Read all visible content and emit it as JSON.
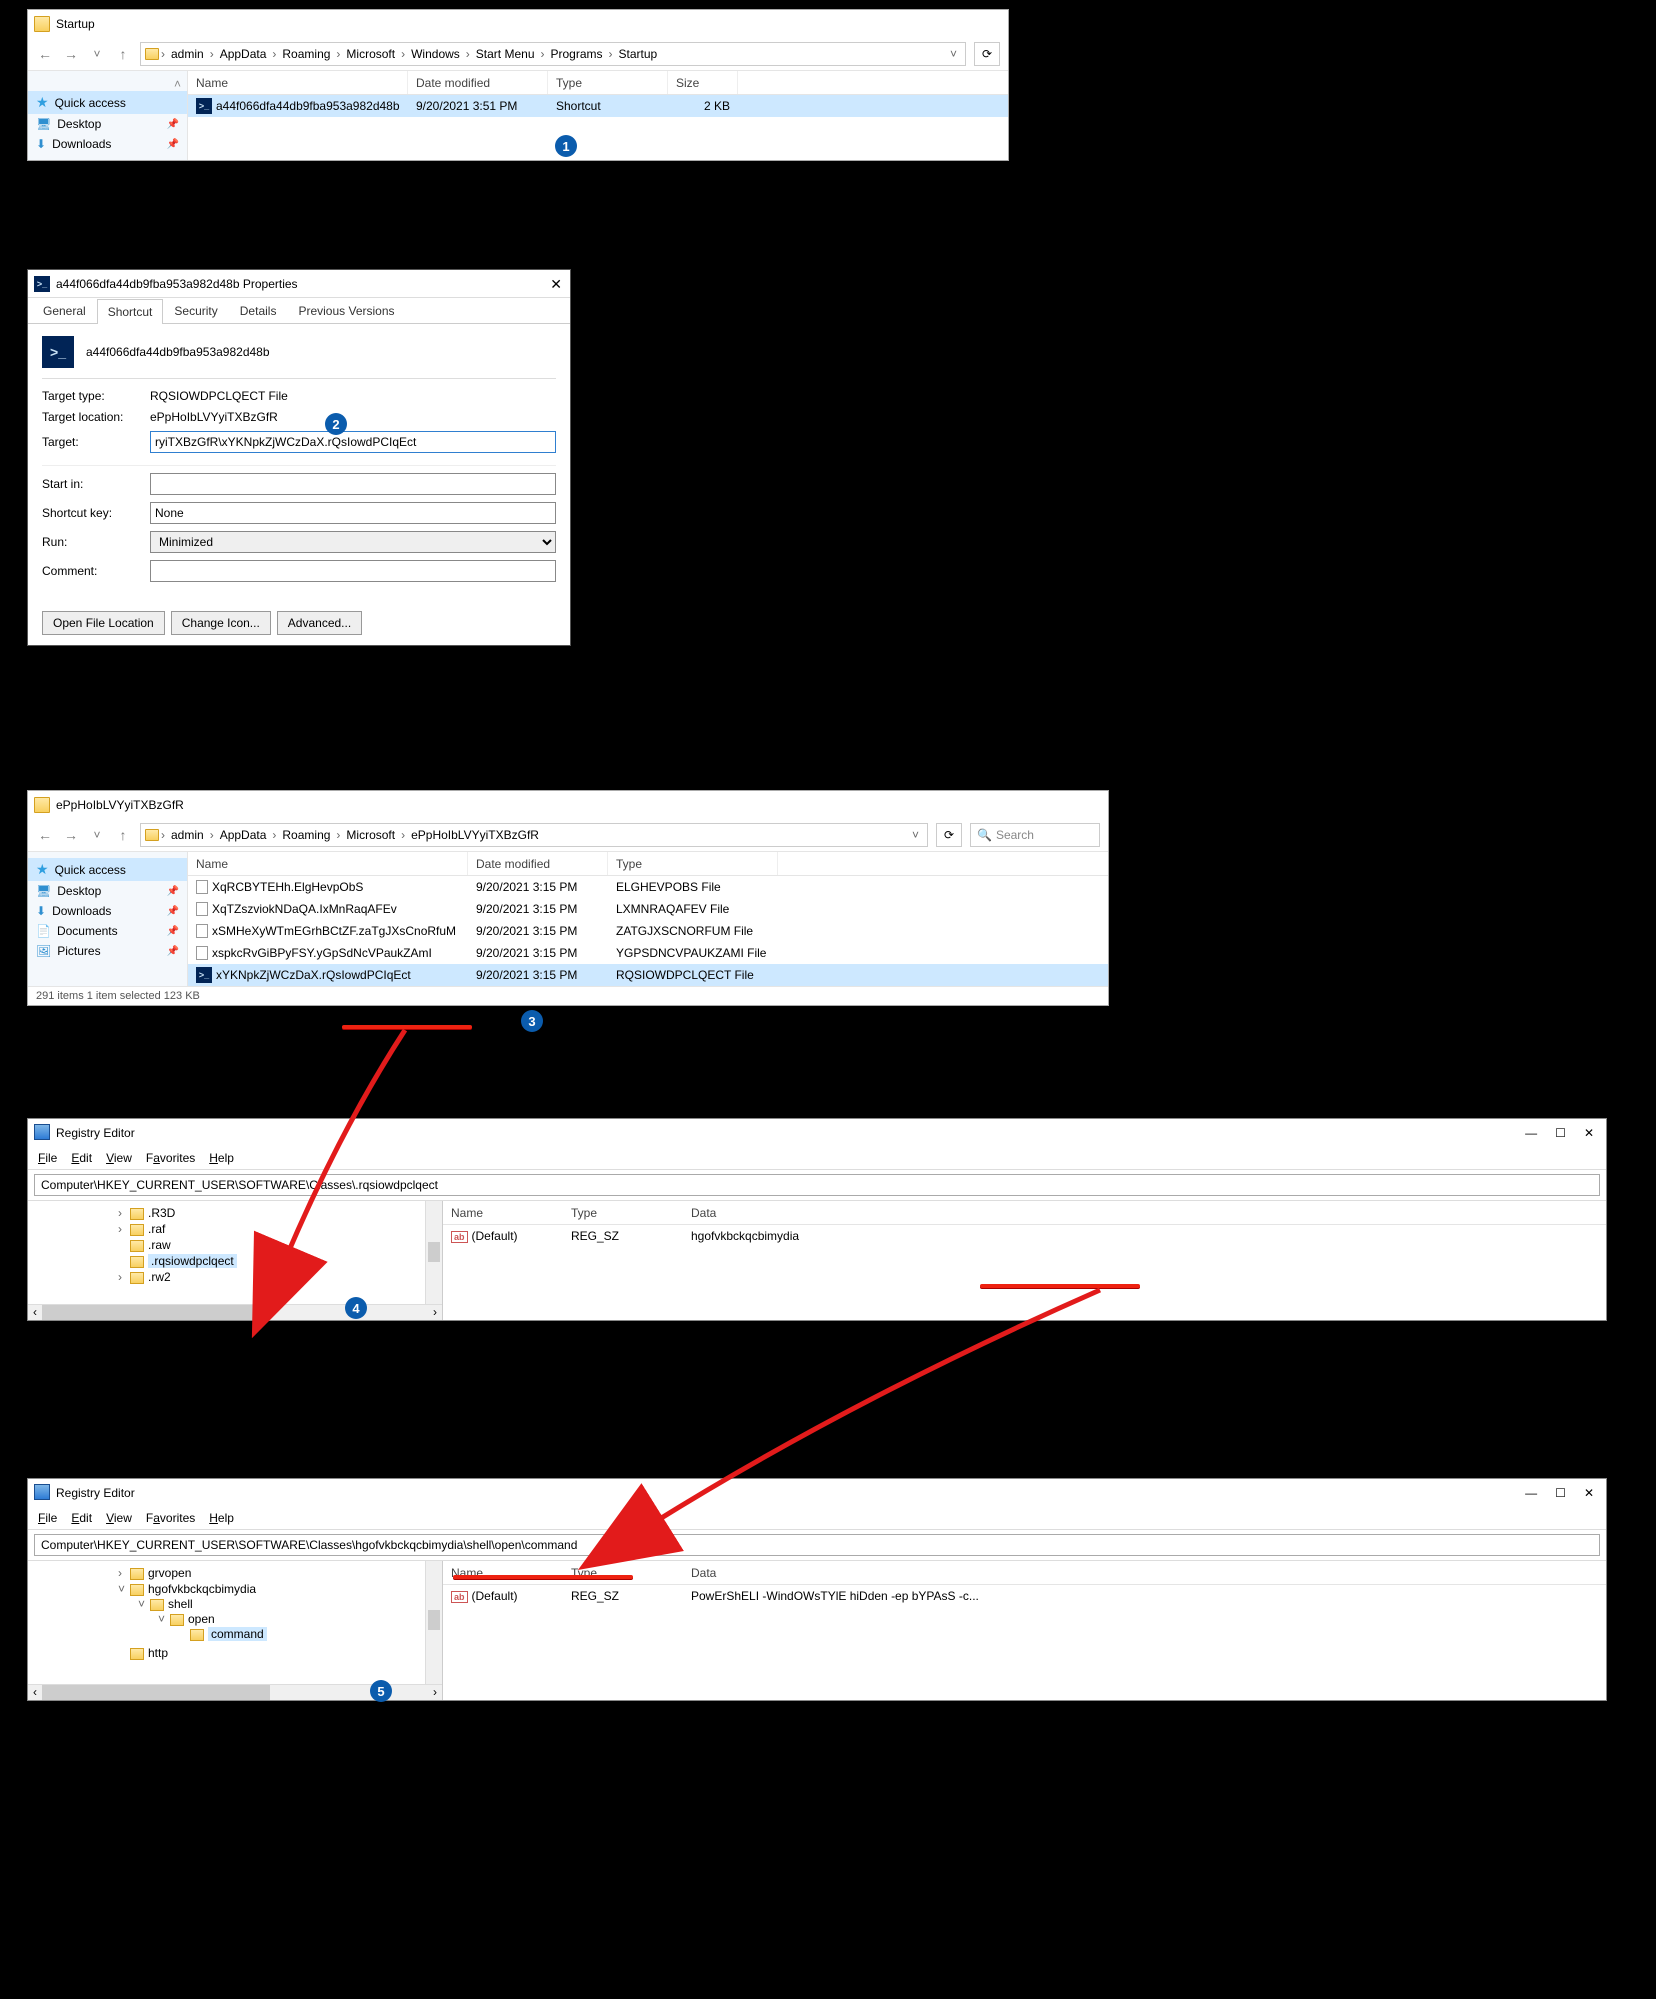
{
  "explorer1": {
    "title": "Startup",
    "breadcrumbs": [
      "admin",
      "AppData",
      "Roaming",
      "Microsoft",
      "Windows",
      "Start Menu",
      "Programs",
      "Startup"
    ],
    "columns": {
      "name": "Name",
      "date": "Date modified",
      "type": "Type",
      "size": "Size"
    },
    "row": {
      "name": "a44f066dfa44db9fba953a982d48b",
      "date": "9/20/2021 3:51 PM",
      "type": "Shortcut",
      "size": "2 KB"
    },
    "col_widths": {
      "name": 220,
      "date": 140,
      "type": 120,
      "size": 70
    },
    "nav": {
      "quick": "Quick access",
      "desktop": "Desktop",
      "downloads": "Downloads"
    }
  },
  "bubbles": {
    "b1": "1",
    "b2": "2",
    "b3": "3",
    "b4": "4",
    "b5": "5"
  },
  "props": {
    "title": "a44f066dfa44db9fba953a982d48b Properties",
    "tabs": {
      "general": "General",
      "shortcut": "Shortcut",
      "security": "Security",
      "details": "Details",
      "prev": "Previous Versions"
    },
    "filename": "a44f066dfa44db9fba953a982d48b",
    "labels": {
      "target_type": "Target type:",
      "target_type_val": "RQSIOWDPCLQECT File",
      "target_loc": "Target location:",
      "target_loc_val": "ePpHoIbLVYyiTXBzGfR",
      "target": "Target:",
      "target_val": "ryiTXBzGfR\\xYKNpkZjWCzDaX.rQsIowdPCIqEct",
      "start_in": "Start in:",
      "start_in_val": "",
      "shortcut_key": "Shortcut key:",
      "shortcut_key_val": "None",
      "run": "Run:",
      "run_val": "Minimized",
      "comment": "Comment:",
      "comment_val": ""
    },
    "buttons": {
      "open": "Open File Location",
      "icon": "Change Icon...",
      "adv": "Advanced..."
    }
  },
  "explorer2": {
    "title": "ePpHoIbLVYyiTXBzGfR",
    "breadcrumbs": [
      "admin",
      "AppData",
      "Roaming",
      "Microsoft",
      "ePpHoIbLVYyiTXBzGfR"
    ],
    "search_placeholder": "Search",
    "columns": {
      "name": "Name",
      "date": "Date modified",
      "type": "Type"
    },
    "col_widths": {
      "name": 280,
      "date": 140,
      "type": 170
    },
    "nav": {
      "quick": "Quick access",
      "desktop": "Desktop",
      "downloads": "Downloads",
      "documents": "Documents",
      "pictures": "Pictures"
    },
    "rows": [
      {
        "name": "XqRCBYTEHh.ElgHevpObS",
        "date": "9/20/2021 3:15 PM",
        "type": "ELGHEVPOBS File",
        "icon": "file"
      },
      {
        "name": "XqTZszviokNDaQA.IxMnRaqAFEv",
        "date": "9/20/2021 3:15 PM",
        "type": "LXMNRAQAFEV File",
        "icon": "file"
      },
      {
        "name": "xSMHeXyWTmEGrhBCtZF.zaTgJXsCnoRfuM",
        "date": "9/20/2021 3:15 PM",
        "type": "ZATGJXSCNORFUM File",
        "icon": "file"
      },
      {
        "name": "xspkcRvGiBPyFSY.yGpSdNcVPaukZAmI",
        "date": "9/20/2021 3:15 PM",
        "type": "YGPSDNCVPAUKZAMI File",
        "icon": "file"
      },
      {
        "name": "xYKNpkZjWCzDaX.rQsIowdPCIqEct",
        "date": "9/20/2021 3:15 PM",
        "type": "RQSIOWDPCLQECT File",
        "icon": "ps",
        "selected": true
      }
    ],
    "status": "291 items    1 item selected  123 KB"
  },
  "reg1": {
    "title": "Registry Editor",
    "menu": {
      "file": "File",
      "edit": "Edit",
      "view": "View",
      "fav": "Favorites",
      "help": "Help"
    },
    "address": "Computer\\HKEY_CURRENT_USER\\SOFTWARE\\Classes\\.rqsiowdpclqect",
    "tree": [
      ".R3D",
      ".raf",
      ".raw",
      ".rqsiowdpclqect",
      ".rw2"
    ],
    "tree_selected": ".rqsiowdpclqect",
    "val_cols": {
      "name": "Name",
      "type": "Type",
      "data": "Data"
    },
    "col_widths": {
      "name": 120,
      "type": 120,
      "data": 260
    },
    "value": {
      "name": "(Default)",
      "type": "REG_SZ",
      "data": "hgofvkbckqcbimydia"
    }
  },
  "reg2": {
    "title": "Registry Editor",
    "address": "Computer\\HKEY_CURRENT_USER\\SOFTWARE\\Classes\\hgofvkbckqcbimydia\\shell\\open\\command",
    "tree": {
      "grvopen": "grvopen",
      "root": "hgofvkbckqcbimydia",
      "shell": "shell",
      "open": "open",
      "command": "command",
      "http": "http"
    },
    "val_cols": {
      "name": "Name",
      "type": "Type",
      "data": "Data"
    },
    "col_widths": {
      "name": 120,
      "type": 120,
      "data": 320
    },
    "value": {
      "name": "(Default)",
      "type": "REG_SZ",
      "data": "PowErShELI -WindOWsTYlE hiDden -ep bYPAsS -c..."
    }
  },
  "colors": {
    "accent": "#0b5cad",
    "annot": "#e21b1b",
    "sel": "#cde8ff"
  }
}
